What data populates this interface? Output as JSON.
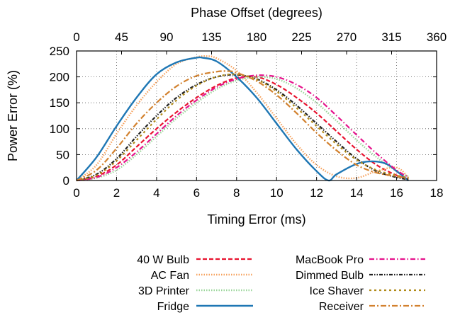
{
  "chart_data": {
    "type": "line",
    "xlabel": "Timing Error (ms)",
    "ylabel": "Power Error (%)",
    "x2label": "Phase Offset (degrees)",
    "xlim": [
      0,
      18
    ],
    "ylim": [
      0,
      250
    ],
    "x2lim": [
      0,
      360
    ],
    "xticks": [
      "0",
      "2",
      "4",
      "6",
      "8",
      "10",
      "12",
      "14",
      "16",
      "18"
    ],
    "yticks": [
      "0",
      "50",
      "100",
      "150",
      "200",
      "250"
    ],
    "x2ticks": [
      "0",
      "45",
      "90",
      "135",
      "180",
      "225",
      "270",
      "315",
      "360"
    ],
    "grid": true,
    "legend_position": "bottom",
    "series": [
      {
        "name": "40 W Bulb",
        "color": "#e8132f",
        "dash": "dashed",
        "x": [
          0,
          1,
          2,
          3,
          4,
          5,
          6,
          7,
          8,
          9,
          10,
          11,
          12,
          13,
          14,
          15,
          16,
          16.6
        ],
        "y": [
          0,
          8,
          30,
          65,
          100,
          132,
          160,
          183,
          198,
          200,
          185,
          160,
          130,
          95,
          60,
          30,
          10,
          3
        ]
      },
      {
        "name": "AC Fan",
        "color": "#f6a25e",
        "dash": "dotted",
        "x": [
          0,
          1,
          2,
          3,
          4,
          5,
          6,
          6.5,
          7,
          8,
          9,
          10,
          11,
          12,
          13,
          14,
          15,
          16,
          16.6
        ],
        "y": [
          0,
          30,
          90,
          145,
          190,
          225,
          238,
          240,
          236,
          212,
          170,
          120,
          70,
          30,
          8,
          5,
          18,
          25,
          5
        ]
      },
      {
        "name": "3D Printer",
        "color": "#9ad69a",
        "dash": "dotted",
        "x": [
          0,
          1,
          2,
          3,
          4,
          5,
          6,
          7,
          8,
          9,
          10,
          11,
          12,
          13,
          14,
          15,
          16,
          16.6
        ],
        "y": [
          0,
          5,
          20,
          50,
          85,
          120,
          150,
          176,
          193,
          200,
          196,
          178,
          150,
          115,
          78,
          45,
          18,
          8
        ]
      },
      {
        "name": "Fridge",
        "color": "#1f77b4",
        "dash": "solid",
        "x": [
          0,
          1,
          2,
          3,
          4,
          5,
          6,
          6.3,
          7,
          8,
          9,
          10,
          11,
          12,
          12.6,
          13,
          14,
          14.8,
          15.5,
          16,
          16.6
        ],
        "y": [
          0,
          45,
          105,
          160,
          205,
          228,
          237,
          237,
          230,
          200,
          160,
          110,
          60,
          18,
          0,
          12,
          32,
          37,
          32,
          18,
          0
        ]
      },
      {
        "name": "MacBook Pro",
        "color": "#e6138c",
        "dash": "dashdot",
        "x": [
          0,
          1,
          2,
          3,
          4,
          5,
          6,
          7,
          8,
          9,
          10,
          11,
          12,
          13,
          14,
          15,
          16,
          16.6
        ],
        "y": [
          0,
          6,
          25,
          55,
          90,
          125,
          155,
          180,
          196,
          203,
          200,
          185,
          160,
          125,
          88,
          52,
          20,
          6
        ]
      },
      {
        "name": "Dimmed Bulb",
        "color": "#222222",
        "dash": "dashdotdot",
        "x": [
          0,
          1,
          2,
          3,
          4,
          5,
          6,
          7,
          8,
          9,
          10,
          11,
          12,
          13,
          14,
          15,
          16,
          16.6
        ],
        "y": [
          0,
          12,
          42,
          85,
          125,
          160,
          185,
          200,
          204,
          196,
          175,
          145,
          110,
          75,
          42,
          18,
          6,
          2
        ]
      },
      {
        "name": "Ice Shaver",
        "color": "#b08a18",
        "dash": "dashdot2",
        "x": [
          0,
          1,
          2,
          3,
          4,
          5,
          6,
          7,
          8,
          9,
          10,
          11,
          12,
          13,
          14,
          15,
          16,
          16.6
        ],
        "y": [
          0,
          10,
          38,
          78,
          118,
          155,
          183,
          200,
          205,
          195,
          172,
          140,
          105,
          70,
          40,
          20,
          10,
          5
        ]
      },
      {
        "name": "Receiver",
        "color": "#d2812e",
        "dash": "longdash",
        "x": [
          0,
          1,
          2,
          3,
          4,
          5,
          6,
          7,
          7.6,
          8,
          9,
          10,
          11,
          12,
          13,
          14,
          15,
          16,
          16.6
        ],
        "y": [
          0,
          20,
          62,
          110,
          150,
          182,
          202,
          210,
          211,
          208,
          192,
          165,
          130,
          92,
          58,
          30,
          15,
          8,
          3
        ]
      }
    ]
  }
}
